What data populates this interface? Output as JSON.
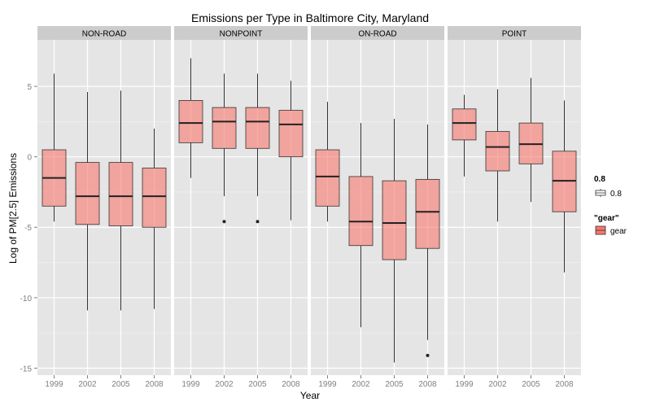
{
  "chart_data": {
    "type": "box",
    "title": "Emissions per Type in Baltimore City, Maryland",
    "xlabel": "Year",
    "ylabel": "Log of PM[2.5] Emissions",
    "ylim": [
      -15.5,
      8.3
    ],
    "yticks": [
      5,
      0,
      -5,
      -10,
      -15
    ],
    "categories": [
      "1999",
      "2002",
      "2005",
      "2008"
    ],
    "fill_color": "#F8766D",
    "fill_alpha": 0.6,
    "legend": {
      "placement": "right",
      "alpha_title": "0.8",
      "alpha_label": "0.8",
      "fill_title": "\"gear\"",
      "fill_label": "gear"
    },
    "panels": [
      {
        "name": "NON-ROAD",
        "boxes": [
          {
            "year": "1999",
            "min": -4.6,
            "q1": -3.5,
            "median": -1.5,
            "q3": 0.5,
            "max": 5.9,
            "outliers": []
          },
          {
            "year": "2002",
            "min": -10.9,
            "q1": -4.8,
            "median": -2.8,
            "q3": -0.4,
            "max": 4.6,
            "outliers": []
          },
          {
            "year": "2005",
            "min": -10.9,
            "q1": -4.9,
            "median": -2.8,
            "q3": -0.4,
            "max": 4.7,
            "outliers": []
          },
          {
            "year": "2008",
            "min": -10.8,
            "q1": -5.0,
            "median": -2.8,
            "q3": -0.8,
            "max": 2.0,
            "outliers": []
          }
        ]
      },
      {
        "name": "NONPOINT",
        "boxes": [
          {
            "year": "1999",
            "min": -1.5,
            "q1": 1.0,
            "median": 2.4,
            "q3": 4.0,
            "max": 7.0,
            "outliers": []
          },
          {
            "year": "2002",
            "min": -2.8,
            "q1": 0.6,
            "median": 2.5,
            "q3": 3.5,
            "max": 5.9,
            "outliers": [
              -4.6
            ]
          },
          {
            "year": "2005",
            "min": -2.8,
            "q1": 0.6,
            "median": 2.5,
            "q3": 3.5,
            "max": 5.9,
            "outliers": [
              -4.6
            ]
          },
          {
            "year": "2008",
            "min": -4.5,
            "q1": 0.0,
            "median": 2.3,
            "q3": 3.3,
            "max": 5.4,
            "outliers": []
          }
        ]
      },
      {
        "name": "ON-ROAD",
        "boxes": [
          {
            "year": "1999",
            "min": -4.6,
            "q1": -3.5,
            "median": -1.4,
            "q3": 0.5,
            "max": 3.9,
            "outliers": []
          },
          {
            "year": "2002",
            "min": -12.1,
            "q1": -6.3,
            "median": -4.6,
            "q3": -1.4,
            "max": 2.4,
            "outliers": []
          },
          {
            "year": "2005",
            "min": -14.6,
            "q1": -7.3,
            "median": -4.7,
            "q3": -1.7,
            "max": 2.7,
            "outliers": []
          },
          {
            "year": "2008",
            "min": -13.0,
            "q1": -6.5,
            "median": -3.9,
            "q3": -1.6,
            "max": 2.3,
            "outliers": [
              -14.1
            ]
          }
        ]
      },
      {
        "name": "POINT",
        "boxes": [
          {
            "year": "1999",
            "min": -1.4,
            "q1": 1.2,
            "median": 2.4,
            "q3": 3.4,
            "max": 4.4,
            "outliers": []
          },
          {
            "year": "2002",
            "min": -4.6,
            "q1": -1.0,
            "median": 0.7,
            "q3": 1.8,
            "max": 4.8,
            "outliers": []
          },
          {
            "year": "2005",
            "min": -3.2,
            "q1": -0.5,
            "median": 0.9,
            "q3": 2.4,
            "max": 5.6,
            "outliers": []
          },
          {
            "year": "2008",
            "min": -8.2,
            "q1": -3.9,
            "median": -1.7,
            "q3": 0.4,
            "max": 4.0,
            "outliers": []
          }
        ]
      }
    ]
  }
}
